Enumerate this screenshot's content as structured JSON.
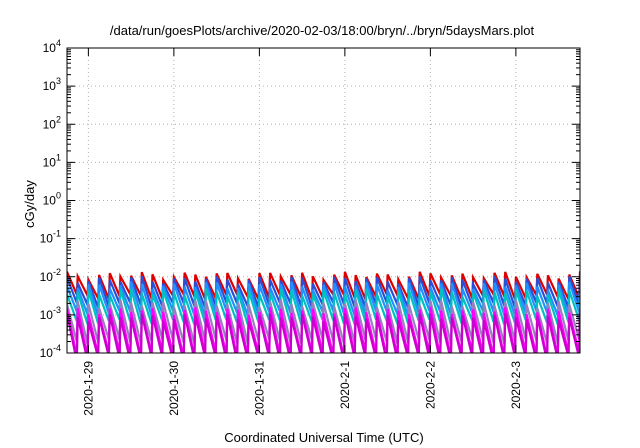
{
  "chart_data": {
    "type": "line",
    "title": "/data/run/goesPlots/archive/2020-02-03/18:00/bryn/../bryn/5daysMars.plot",
    "xlabel": "Coordinated Universal Time (UTC)",
    "ylabel": "cGy/day",
    "yscale": "log",
    "ylim": [
      0.0001,
      10000
    ],
    "xlim": [
      "2020-01-28T18:00",
      "2020-02-03T18:00"
    ],
    "grid": true,
    "y_ticks": [
      {
        "value": 0.0001,
        "base": "10",
        "exp": "-4"
      },
      {
        "value": 0.001,
        "base": "10",
        "exp": "-3"
      },
      {
        "value": 0.01,
        "base": "10",
        "exp": "-2"
      },
      {
        "value": 0.1,
        "base": "10",
        "exp": "-1"
      },
      {
        "value": 1,
        "base": "10",
        "exp": "0"
      },
      {
        "value": 10,
        "base": "10",
        "exp": "1"
      },
      {
        "value": 100,
        "base": "10",
        "exp": "2"
      },
      {
        "value": 1000,
        "base": "10",
        "exp": "3"
      },
      {
        "value": 10000,
        "base": "10",
        "exp": "4"
      }
    ],
    "x_ticks": [
      {
        "value": "2020-01-29T00:00",
        "label": "2020-1-29"
      },
      {
        "value": "2020-01-30T00:00",
        "label": "2020-1-30"
      },
      {
        "value": "2020-01-31T00:00",
        "label": "2020-1-31"
      },
      {
        "value": "2020-02-01T00:00",
        "label": "2020-2-1"
      },
      {
        "value": "2020-02-02T00:00",
        "label": "2020-2-2"
      },
      {
        "value": "2020-02-03T00:00",
        "label": "2020-2-3"
      }
    ],
    "sawtooth_period_hours": 3,
    "series": [
      {
        "color": "#dd0000",
        "peak": 0.011,
        "trough": 0.003
      },
      {
        "color": "#2a4fd6",
        "peak": 0.0085,
        "trough": 0.0018
      },
      {
        "color": "#1e90ff",
        "peak": 0.006,
        "trough": 0.0011
      },
      {
        "color": "#00c0c0",
        "peak": 0.004,
        "trough": 0.00065
      },
      {
        "color": "#9a7fc0",
        "peak": 0.002,
        "trough": 0.0002
      },
      {
        "color": "#ff00ff",
        "peak": 0.0013,
        "trough": 9e-05
      },
      {
        "color": "#cc00cc",
        "peak": 0.0009,
        "trough": 7e-05
      }
    ]
  }
}
